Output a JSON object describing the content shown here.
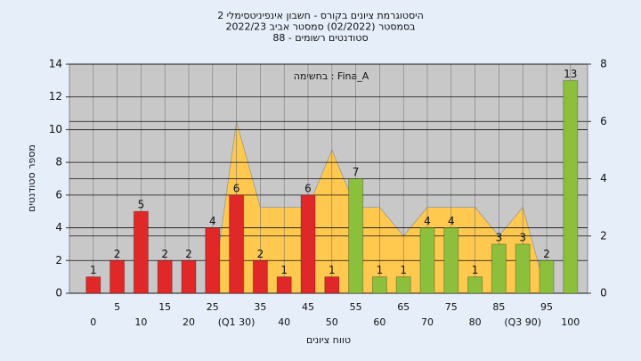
{
  "chart_data": {
    "type": "bar",
    "title": [
      "היסטוגרמת ציונים בקורס - חשבון אינפיניטסימלי 2",
      "בסמסטר  (02/2022)  סמסטר אביב 2022/23",
      "סטודנטים רשומים - 88"
    ],
    "annotation": "בחשימה : Fina_A",
    "y_label": "מספר סטודנטים",
    "x_label": "טווח ציונים",
    "categories": [
      "0",
      "5",
      "10",
      "15",
      "20",
      "25",
      "(Q1 30)",
      "35",
      "40",
      "45",
      "50",
      "55",
      "60",
      "65",
      "70",
      "75",
      "80",
      "85",
      "(Q3 90)",
      "95",
      "100"
    ],
    "values": [
      1,
      2,
      5,
      2,
      2,
      4,
      6,
      2,
      1,
      6,
      1,
      7,
      1,
      1,
      4,
      4,
      1,
      3,
      3,
      2,
      13
    ],
    "colors": [
      "#e02828",
      "#e02828",
      "#e02828",
      "#e02828",
      "#e02828",
      "#e02828",
      "#e02828",
      "#e02828",
      "#e02828",
      "#e02828",
      "#e02828",
      "#8cc03c",
      "#8cc03c",
      "#8cc03c",
      "#8cc03c",
      "#8cc03c",
      "#8cc03c",
      "#8cc03c",
      "#8cc03c",
      "#8cc03c",
      "#8cc03c"
    ],
    "area": {
      "values": [
        0,
        0,
        0,
        0,
        0,
        0,
        6,
        3,
        3,
        3,
        5,
        3,
        3,
        2,
        3,
        3,
        3,
        2,
        3,
        0,
        0
      ],
      "color": "#ffc84e",
      "axis": "y2"
    },
    "ylim": [
      0,
      14
    ],
    "yticks": [
      0,
      2,
      4,
      6,
      8,
      10,
      12,
      14
    ],
    "y2lim": [
      0,
      8
    ],
    "y2ticks": [
      0,
      2,
      4,
      6,
      8
    ],
    "grid": true
  }
}
